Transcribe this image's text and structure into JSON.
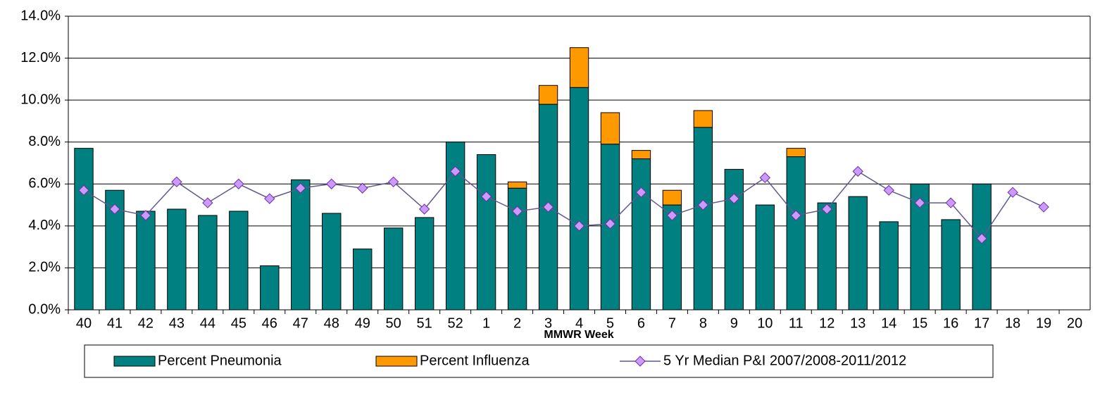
{
  "chart_data": {
    "type": "stacked-bar-line",
    "x_label": "MMWR Week",
    "categories": [
      "40",
      "41",
      "42",
      "43",
      "44",
      "45",
      "46",
      "47",
      "48",
      "49",
      "50",
      "51",
      "52",
      "1",
      "2",
      "3",
      "4",
      "5",
      "6",
      "7",
      "8",
      "9",
      "10",
      "11",
      "12",
      "13",
      "14",
      "15",
      "16",
      "17",
      "18",
      "19",
      "20"
    ],
    "series": [
      {
        "name": "Percent Pneumonia",
        "kind": "bar",
        "color": "#008080",
        "values": [
          7.7,
          5.7,
          4.7,
          4.8,
          4.5,
          4.7,
          2.1,
          6.2,
          4.6,
          2.9,
          3.9,
          4.4,
          8.0,
          7.4,
          5.8,
          9.8,
          10.6,
          7.9,
          7.2,
          5.0,
          8.7,
          6.7,
          5.0,
          7.3,
          5.1,
          5.4,
          4.2,
          6.0,
          4.3,
          6.0,
          null,
          null,
          null
        ]
      },
      {
        "name": "Percent Influenza",
        "kind": "bar",
        "color": "#ff9900",
        "values": [
          null,
          null,
          null,
          null,
          null,
          null,
          null,
          null,
          null,
          null,
          null,
          null,
          null,
          null,
          0.3,
          0.9,
          1.9,
          1.5,
          0.4,
          0.7,
          0.8,
          null,
          null,
          0.4,
          null,
          null,
          null,
          null,
          null,
          null,
          null,
          null,
          null
        ]
      },
      {
        "name": "5 Yr Median P&I 2007/2008-2011/2012",
        "kind": "line",
        "color": "#5f5a8f",
        "marker_color": "#cc99ff",
        "values": [
          5.7,
          4.8,
          4.5,
          6.1,
          5.1,
          6.0,
          5.3,
          5.8,
          6.0,
          5.8,
          6.1,
          4.8,
          6.6,
          5.4,
          4.7,
          4.9,
          4.0,
          4.1,
          5.6,
          4.5,
          5.0,
          5.3,
          6.3,
          4.5,
          4.8,
          6.6,
          5.7,
          5.1,
          5.1,
          3.4,
          5.6,
          4.9,
          null
        ]
      }
    ],
    "ylim": [
      0,
      14
    ],
    "yticks": [
      {
        "value": 0,
        "label": "0.0%"
      },
      {
        "value": 2,
        "label": "2.0%"
      },
      {
        "value": 4,
        "label": "4.0%"
      },
      {
        "value": 6,
        "label": "6.0%"
      },
      {
        "value": 8,
        "label": "8.0%"
      },
      {
        "value": 10,
        "label": "10.0%"
      },
      {
        "value": 12,
        "label": "12.0%"
      },
      {
        "value": 14,
        "label": "14.0%"
      }
    ],
    "grid": true,
    "legend": "bottom"
  }
}
